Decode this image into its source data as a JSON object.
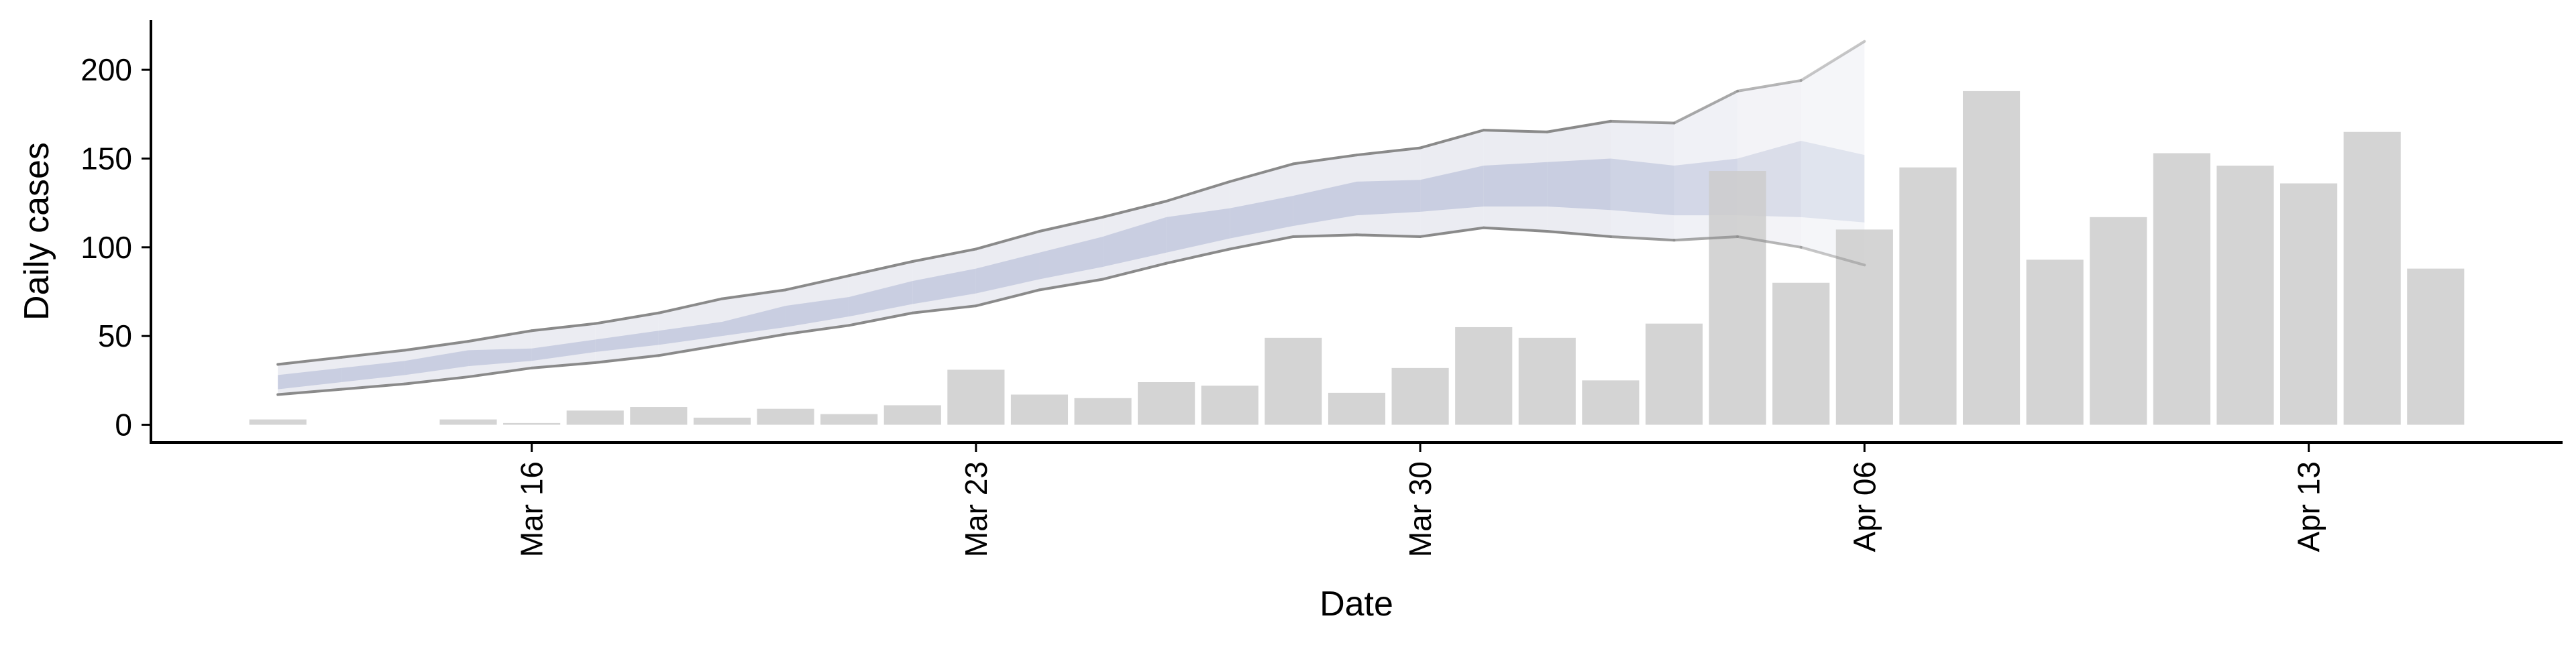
{
  "chart_data": {
    "type": "bar",
    "title": "",
    "xlabel": "Date",
    "ylabel": "Daily cases",
    "ylim": [
      -10,
      228
    ],
    "xlim": [
      "2020-03-10",
      "2020-04-17"
    ],
    "y_ticks": [
      0,
      50,
      100,
      150,
      200
    ],
    "y_tick_labels": [
      "0",
      "50",
      "100",
      "150",
      "200"
    ],
    "x_ticks": [
      "2020-03-16",
      "2020-03-23",
      "2020-03-30",
      "2020-04-06",
      "2020-04-13"
    ],
    "x_tick_labels": [
      "Mar 16",
      "Mar 23",
      "Mar 30",
      "Apr 06",
      "Apr 13"
    ],
    "grid": false,
    "bars": {
      "dates": [
        "2020-03-12",
        "2020-03-13",
        "2020-03-14",
        "2020-03-15",
        "2020-03-16",
        "2020-03-17",
        "2020-03-18",
        "2020-03-19",
        "2020-03-20",
        "2020-03-21",
        "2020-03-22",
        "2020-03-23",
        "2020-03-24",
        "2020-03-25",
        "2020-03-26",
        "2020-03-27",
        "2020-03-28",
        "2020-03-29",
        "2020-03-30",
        "2020-03-31",
        "2020-04-01",
        "2020-04-02",
        "2020-04-03",
        "2020-04-04",
        "2020-04-05",
        "2020-04-06",
        "2020-04-07",
        "2020-04-08",
        "2020-04-09",
        "2020-04-10",
        "2020-04-11",
        "2020-04-12",
        "2020-04-13",
        "2020-04-14",
        "2020-04-15"
      ],
      "values": [
        3,
        0,
        0,
        3,
        1,
        8,
        10,
        4,
        9,
        6,
        11,
        31,
        17,
        15,
        24,
        22,
        49,
        18,
        32,
        55,
        49,
        25,
        57,
        143,
        80,
        110,
        145,
        188,
        93,
        117,
        153,
        146,
        136,
        165,
        88
      ],
      "color": "#cccccc"
    },
    "estimate": {
      "dates": [
        "2020-03-12",
        "2020-03-13",
        "2020-03-14",
        "2020-03-15",
        "2020-03-16",
        "2020-03-17",
        "2020-03-18",
        "2020-03-19",
        "2020-03-20",
        "2020-03-21",
        "2020-03-22",
        "2020-03-23",
        "2020-03-24",
        "2020-03-25",
        "2020-03-26",
        "2020-03-27",
        "2020-03-28",
        "2020-03-29",
        "2020-03-30",
        "2020-03-31",
        "2020-04-01",
        "2020-04-02",
        "2020-04-03",
        "2020-04-04",
        "2020-04-05",
        "2020-04-06"
      ],
      "outer_lower": [
        17,
        20,
        23,
        27,
        32,
        35,
        39,
        45,
        51,
        56,
        63,
        67,
        76,
        82,
        91,
        99,
        106,
        107,
        106,
        111,
        109,
        106,
        104,
        106,
        100,
        90
      ],
      "outer_upper": [
        34,
        38,
        42,
        47,
        53,
        57,
        63,
        71,
        76,
        84,
        92,
        99,
        109,
        117,
        126,
        137,
        147,
        152,
        156,
        166,
        165,
        171,
        170,
        188,
        194,
        216
      ],
      "inner_lower": [
        20,
        24,
        28,
        33,
        36,
        41,
        45,
        50,
        55,
        61,
        68,
        74,
        82,
        89,
        97,
        105,
        112,
        118,
        120,
        123,
        123,
        121,
        118,
        118,
        117,
        114
      ],
      "inner_upper": [
        28,
        32,
        36,
        42,
        43,
        48,
        53,
        58,
        67,
        72,
        81,
        88,
        97,
        106,
        117,
        122,
        129,
        137,
        138,
        146,
        148,
        150,
        146,
        150,
        160,
        152
      ],
      "outer_color": "#e4e5ee",
      "inner_color": "#c5cbdf",
      "line_color": "#8a8a8a"
    }
  }
}
